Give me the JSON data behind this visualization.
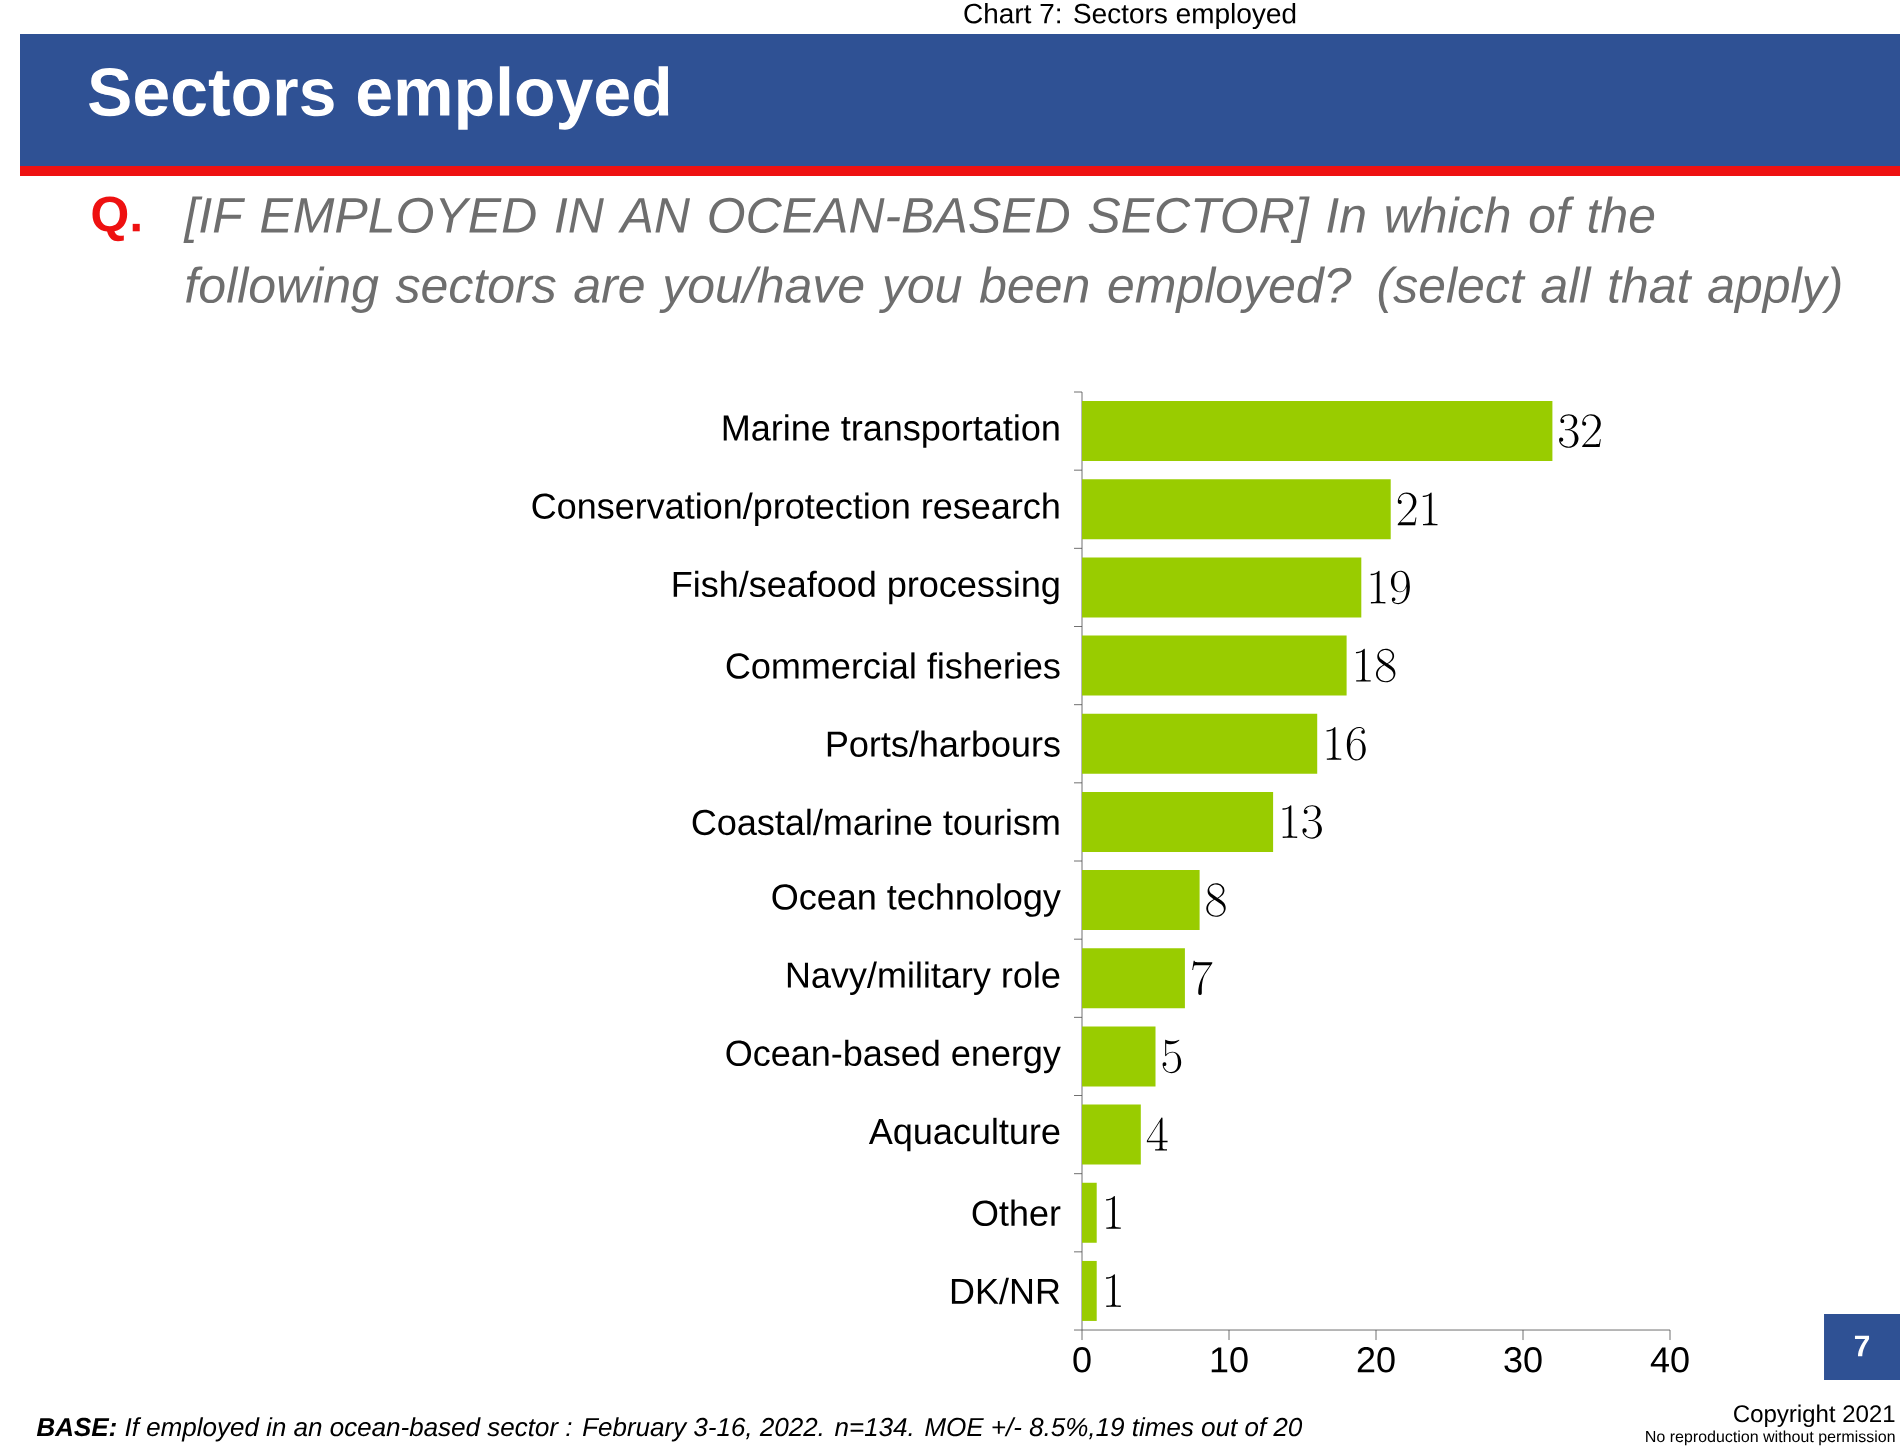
{
  "chart_data": {
    "type": "bar",
    "orientation": "horizontal",
    "title": "Sectors employed",
    "subtitle": "[IF EMPLOYED IN AN OCEAN-BASED SECTOR] In which of the following sectors are you/have you been employed? (select all that apply)",
    "categories": [
      "Marine transportation",
      "Conservation/protection research",
      "Fish/seafood processing",
      "Commercial fisheries",
      "Ports/harbours",
      "Coastal/marine tourism",
      "Ocean technology",
      "Navy/military role",
      "Ocean-based energy",
      "Aquaculture",
      "Other",
      "DK/NR"
    ],
    "values": [
      32,
      21,
      19,
      18,
      16,
      13,
      8,
      7,
      5,
      4,
      1,
      1
    ],
    "color": "#99cc00",
    "xlim": [
      0,
      40
    ],
    "xticks": [
      0,
      10,
      20,
      30,
      40
    ],
    "data_labels": true,
    "annotations": [
      "Chart 7: Sectors employed",
      "Q.",
      "**BASE:** If employed in an ocean-based sector : February 3-16, 2022. n=134. MOE +/- 8.5%,19 times out of 20",
      "7",
      "Copyright 2021",
      "No reproduction without permission"
    ]
  }
}
